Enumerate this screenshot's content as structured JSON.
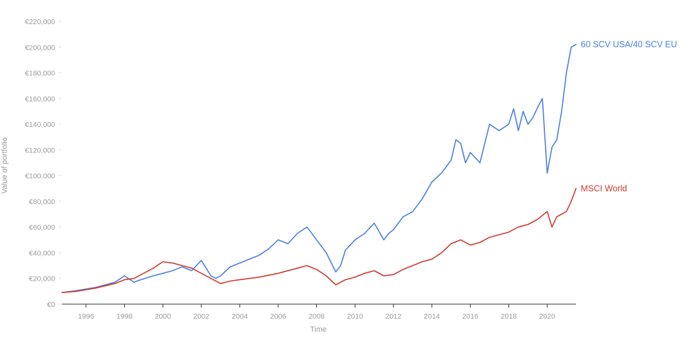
{
  "chart_data": {
    "type": "line",
    "xlabel": "Time",
    "ylabel": "Value of portfolio",
    "xlim": [
      1994.75,
      2021.5
    ],
    "ylim": [
      0,
      220000
    ],
    "x_ticks": [
      1996,
      1998,
      2000,
      2002,
      2004,
      2006,
      2008,
      2010,
      2012,
      2014,
      2016,
      2018,
      2020
    ],
    "x_tick_labels": [
      "1996",
      "1998",
      "2000",
      "2002",
      "2004",
      "2006",
      "2008",
      "2010",
      "2012",
      "2014",
      "2016",
      "2018",
      "2020"
    ],
    "y_ticks": [
      0,
      20000,
      40000,
      60000,
      80000,
      100000,
      120000,
      140000,
      160000,
      180000,
      200000,
      220000
    ],
    "y_tick_labels": [
      "€0",
      "€20,000",
      "€40,000",
      "€60,000",
      "€80,000",
      "€100,000",
      "€120,000",
      "€140,000",
      "€160,000",
      "€180,000",
      "€200,000",
      "€220,000"
    ],
    "grid": false,
    "legend": "inline labels at line ends",
    "series": [
      {
        "name": "60 SCV USA/40 SCV EU",
        "color": "#4a7fe0",
        "x": [
          1994.75,
          1995.5,
          1996.5,
          1997.5,
          1998.0,
          1998.5,
          1998.75,
          1999.5,
          2000.0,
          2000.5,
          2001.0,
          2001.5,
          2002.0,
          2002.5,
          2002.75,
          2003.0,
          2003.5,
          2004.0,
          2004.5,
          2005.0,
          2005.5,
          2006.0,
          2006.5,
          2007.0,
          2007.5,
          2008.0,
          2008.5,
          2009.0,
          2009.25,
          2009.5,
          2010.0,
          2010.5,
          2011.0,
          2011.5,
          2011.75,
          2012.0,
          2012.5,
          2013.0,
          2013.5,
          2014.0,
          2014.5,
          2015.0,
          2015.25,
          2015.5,
          2015.75,
          2016.0,
          2016.5,
          2017.0,
          2017.5,
          2018.0,
          2018.25,
          2018.5,
          2018.75,
          2019.0,
          2019.25,
          2019.5,
          2019.75,
          2020.0,
          2020.25,
          2020.5,
          2020.75,
          2021.0,
          2021.25,
          2021.5
        ],
        "y": [
          9000,
          10500,
          13000,
          17000,
          22000,
          17000,
          18500,
          22000,
          24000,
          26000,
          29000,
          26000,
          34000,
          22000,
          20000,
          22000,
          29000,
          32000,
          35000,
          38000,
          43000,
          50000,
          47000,
          55000,
          60000,
          50000,
          40000,
          25000,
          30000,
          42000,
          50000,
          55000,
          63000,
          50000,
          55000,
          58000,
          68000,
          72000,
          82000,
          95000,
          102000,
          112000,
          128000,
          125000,
          110000,
          118000,
          110000,
          140000,
          135000,
          140000,
          152000,
          135000,
          150000,
          140000,
          145000,
          153000,
          160000,
          102000,
          122000,
          128000,
          150000,
          180000,
          200000,
          202000
        ]
      },
      {
        "name": "MSCI World",
        "color": "#d03a30",
        "x": [
          1994.75,
          1995.5,
          1996.5,
          1997.5,
          1998.0,
          1998.5,
          1999.0,
          1999.5,
          2000.0,
          2000.5,
          2001.0,
          2001.5,
          2002.0,
          2002.5,
          2003.0,
          2003.5,
          2004.0,
          2005.0,
          2006.0,
          2007.0,
          2007.5,
          2008.0,
          2008.5,
          2009.0,
          2009.5,
          2010.0,
          2010.5,
          2011.0,
          2011.5,
          2012.0,
          2012.5,
          2013.0,
          2013.5,
          2014.0,
          2014.5,
          2015.0,
          2015.5,
          2016.0,
          2016.5,
          2017.0,
          2017.5,
          2018.0,
          2018.5,
          2019.0,
          2019.5,
          2020.0,
          2020.25,
          2020.5,
          2020.75,
          2021.0,
          2021.25,
          2021.5
        ],
        "y": [
          9000,
          10000,
          12500,
          16000,
          19000,
          20000,
          24000,
          28000,
          33000,
          32000,
          30000,
          28000,
          24000,
          20000,
          16000,
          18000,
          19000,
          21000,
          24000,
          28000,
          30000,
          27000,
          22000,
          15000,
          19000,
          21000,
          24000,
          26000,
          22000,
          23000,
          27000,
          30000,
          33000,
          35000,
          40000,
          47000,
          50000,
          46000,
          48000,
          52000,
          54000,
          56000,
          60000,
          62000,
          66000,
          72000,
          60000,
          68000,
          70000,
          72000,
          80000,
          90000
        ]
      }
    ]
  }
}
